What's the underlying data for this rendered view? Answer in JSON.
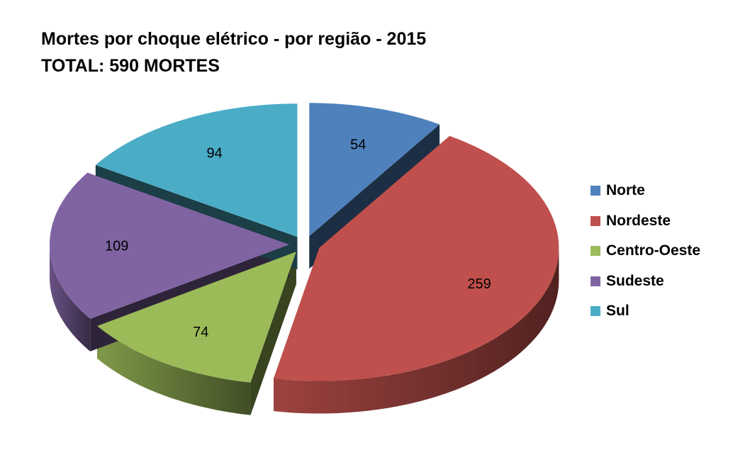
{
  "chart_data": {
    "type": "pie",
    "title": "Mortes por choque elétrico - por região - 2015",
    "subtitle": "TOTAL: 590 MORTES",
    "categories": [
      "Norte",
      "Nordeste",
      "Centro-Oeste",
      "Sudeste",
      "Sul"
    ],
    "values": [
      54,
      259,
      74,
      109,
      94
    ],
    "colors": [
      "#4f81bd",
      "#c0504d",
      "#9bbb59",
      "#8064a2",
      "#4bacc6"
    ],
    "exploded": true,
    "three_d": true,
    "data_labels": true,
    "legend_position": "right"
  }
}
